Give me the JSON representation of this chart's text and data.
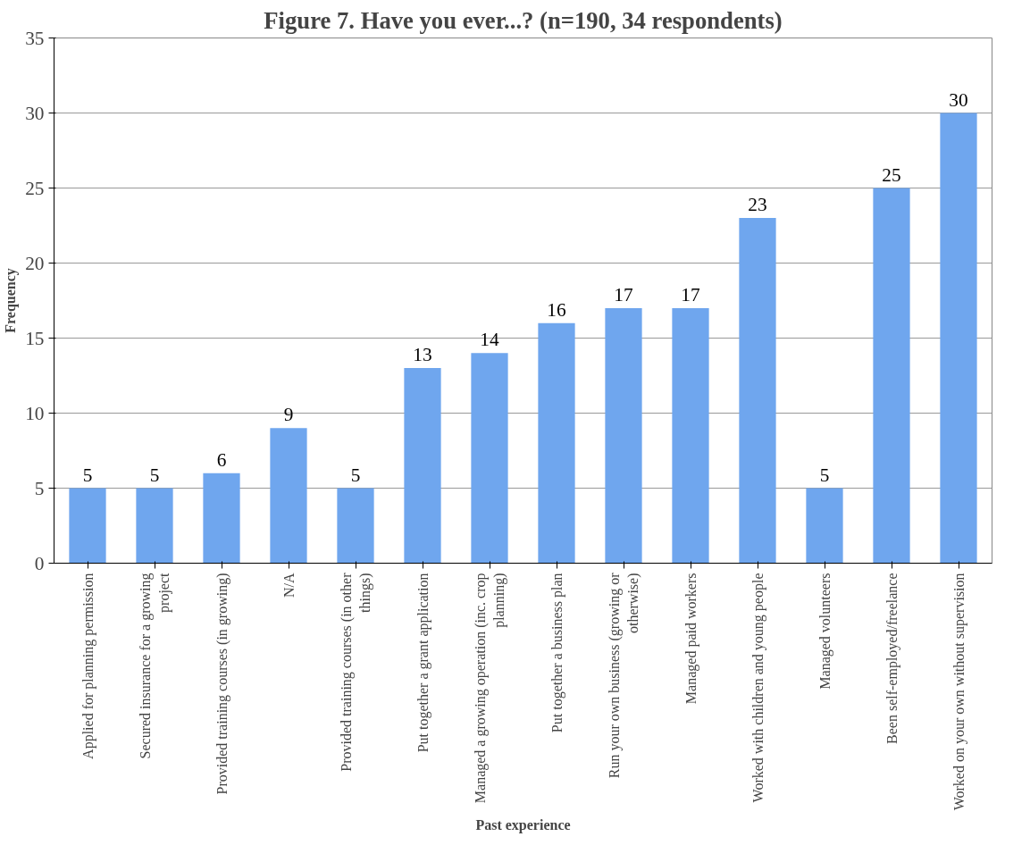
{
  "chart_data": {
    "type": "bar",
    "title": "Figure 7. Have you ever...? (n=190, 34 respondents)",
    "xlabel": "Past experience",
    "ylabel": "Frequency",
    "categories": [
      "Applied for planning permission",
      "Secured insurance for a growing project",
      "Provided training courses (in growing)",
      "N/A",
      "Provided training courses (in other things)",
      "Put together a grant application",
      "Managed a growing operation (inc. crop planning)",
      "Put together a business plan",
      "Run your own business (growing or otherwise)",
      "Managed paid workers",
      "Worked with children and young people",
      "Managed volunteers",
      "Been self-employed/freelance",
      "Worked on your own without supervision"
    ],
    "values": [
      5,
      5,
      6,
      9,
      5,
      13,
      14,
      16,
      17,
      17,
      23,
      5,
      25,
      30
    ],
    "color": "#6fa6ee",
    "ylim": [
      0,
      35
    ],
    "yticks": [
      0,
      5,
      10,
      15,
      20,
      25,
      30,
      35
    ],
    "grid": "y",
    "data_labels": true
  }
}
